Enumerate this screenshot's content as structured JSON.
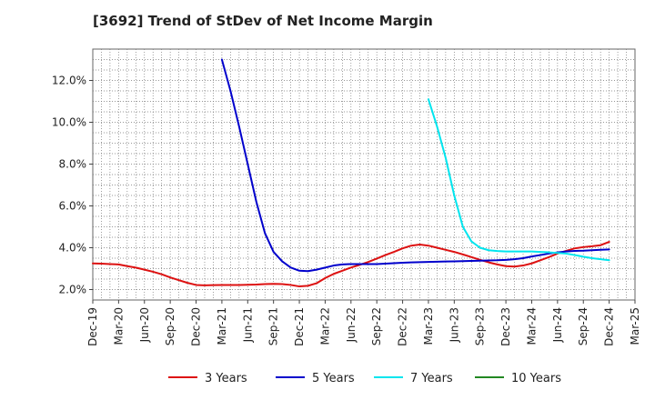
{
  "chart_data": {
    "type": "line",
    "title": "[3692]  Trend of StDev of Net Income Margin",
    "xlabel": "",
    "ylabel": "",
    "ylim": [
      1.5,
      13.5
    ],
    "y_ticks": [
      2.0,
      4.0,
      6.0,
      8.0,
      10.0,
      12.0
    ],
    "y_tick_labels": [
      "2.0%",
      "4.0%",
      "6.0%",
      "8.0%",
      "10.0%",
      "12.0%"
    ],
    "x_tick_labels": [
      "Dec-19",
      "Mar-20",
      "Jun-20",
      "Sep-20",
      "Dec-20",
      "Mar-21",
      "Jun-21",
      "Sep-21",
      "Dec-21",
      "Mar-22",
      "Jun-22",
      "Sep-22",
      "Dec-22",
      "Mar-23",
      "Jun-23",
      "Sep-23",
      "Dec-23",
      "Mar-24",
      "Jun-24",
      "Sep-24",
      "Dec-24",
      "Mar-25"
    ],
    "grid": true,
    "legend_position": "bottom",
    "series": [
      {
        "name": "3 Years",
        "color": "#dd1111",
        "points": [
          [
            "Dec-19",
            3.25
          ],
          [
            "Jan-20",
            3.24
          ],
          [
            "Feb-20",
            3.22
          ],
          [
            "Mar-20",
            3.2
          ],
          [
            "Apr-20",
            3.12
          ],
          [
            "May-20",
            3.05
          ],
          [
            "Jun-20",
            2.95
          ],
          [
            "Jul-20",
            2.85
          ],
          [
            "Aug-20",
            2.73
          ],
          [
            "Sep-20",
            2.58
          ],
          [
            "Oct-20",
            2.45
          ],
          [
            "Nov-20",
            2.32
          ],
          [
            "Dec-20",
            2.22
          ],
          [
            "Jan-21",
            2.2
          ],
          [
            "Feb-21",
            2.21
          ],
          [
            "Mar-21",
            2.22
          ],
          [
            "Apr-21",
            2.22
          ],
          [
            "May-21",
            2.22
          ],
          [
            "Jun-21",
            2.23
          ],
          [
            "Jul-21",
            2.24
          ],
          [
            "Aug-21",
            2.26
          ],
          [
            "Sep-21",
            2.27
          ],
          [
            "Oct-21",
            2.26
          ],
          [
            "Nov-21",
            2.22
          ],
          [
            "Dec-21",
            2.15
          ],
          [
            "Jan-22",
            2.18
          ],
          [
            "Feb-22",
            2.3
          ],
          [
            "Mar-22",
            2.55
          ],
          [
            "Apr-22",
            2.75
          ],
          [
            "May-22",
            2.9
          ],
          [
            "Jun-22",
            3.05
          ],
          [
            "Jul-22",
            3.18
          ],
          [
            "Aug-22",
            3.32
          ],
          [
            "Sep-22",
            3.48
          ],
          [
            "Oct-22",
            3.65
          ],
          [
            "Nov-22",
            3.8
          ],
          [
            "Dec-22",
            3.97
          ],
          [
            "Jan-23",
            4.1
          ],
          [
            "Feb-23",
            4.15
          ],
          [
            "Mar-23",
            4.1
          ],
          [
            "Apr-23",
            4.0
          ],
          [
            "May-23",
            3.9
          ],
          [
            "Jun-23",
            3.8
          ],
          [
            "Jul-23",
            3.68
          ],
          [
            "Aug-23",
            3.55
          ],
          [
            "Sep-23",
            3.42
          ],
          [
            "Oct-23",
            3.3
          ],
          [
            "Nov-23",
            3.2
          ],
          [
            "Dec-23",
            3.12
          ],
          [
            "Jan-24",
            3.1
          ],
          [
            "Feb-24",
            3.15
          ],
          [
            "Mar-24",
            3.25
          ],
          [
            "Apr-24",
            3.4
          ],
          [
            "May-24",
            3.55
          ],
          [
            "Jun-24",
            3.72
          ],
          [
            "Jul-24",
            3.85
          ],
          [
            "Aug-24",
            3.97
          ],
          [
            "Sep-24",
            4.03
          ],
          [
            "Oct-24",
            4.07
          ],
          [
            "Nov-24",
            4.12
          ],
          [
            "Dec-24",
            4.28
          ]
        ]
      },
      {
        "name": "5 Years",
        "color": "#0000cc",
        "points": [
          [
            "Mar-21",
            13.0
          ],
          [
            "Apr-21",
            11.5
          ],
          [
            "May-21",
            9.8
          ],
          [
            "Jun-21",
            8.0
          ],
          [
            "Jul-21",
            6.2
          ],
          [
            "Aug-21",
            4.7
          ],
          [
            "Sep-21",
            3.8
          ],
          [
            "Oct-21",
            3.35
          ],
          [
            "Nov-21",
            3.05
          ],
          [
            "Dec-21",
            2.9
          ],
          [
            "Jan-22",
            2.88
          ],
          [
            "Feb-22",
            2.95
          ],
          [
            "Mar-22",
            3.05
          ],
          [
            "Apr-22",
            3.15
          ],
          [
            "May-22",
            3.2
          ],
          [
            "Jun-22",
            3.22
          ],
          [
            "Jul-22",
            3.22
          ],
          [
            "Aug-22",
            3.22
          ],
          [
            "Sep-22",
            3.22
          ],
          [
            "Oct-22",
            3.24
          ],
          [
            "Nov-22",
            3.26
          ],
          [
            "Dec-22",
            3.28
          ],
          [
            "Jan-23",
            3.3
          ],
          [
            "Feb-23",
            3.31
          ],
          [
            "Mar-23",
            3.32
          ],
          [
            "Apr-23",
            3.33
          ],
          [
            "May-23",
            3.34
          ],
          [
            "Jun-23",
            3.35
          ],
          [
            "Jul-23",
            3.36
          ],
          [
            "Aug-23",
            3.37
          ],
          [
            "Sep-23",
            3.38
          ],
          [
            "Oct-23",
            3.39
          ],
          [
            "Nov-23",
            3.4
          ],
          [
            "Dec-23",
            3.42
          ],
          [
            "Jan-24",
            3.45
          ],
          [
            "Feb-24",
            3.5
          ],
          [
            "Mar-24",
            3.58
          ],
          [
            "Apr-24",
            3.65
          ],
          [
            "May-24",
            3.72
          ],
          [
            "Jun-24",
            3.78
          ],
          [
            "Jul-24",
            3.82
          ],
          [
            "Aug-24",
            3.85
          ],
          [
            "Sep-24",
            3.86
          ],
          [
            "Oct-24",
            3.88
          ],
          [
            "Nov-24",
            3.9
          ],
          [
            "Dec-24",
            3.92
          ]
        ]
      },
      {
        "name": "7 Years",
        "color": "#00e5ee",
        "points": [
          [
            "Mar-23",
            11.1
          ],
          [
            "Apr-23",
            9.8
          ],
          [
            "May-23",
            8.3
          ],
          [
            "Jun-23",
            6.5
          ],
          [
            "Jul-23",
            5.0
          ],
          [
            "Aug-23",
            4.3
          ],
          [
            "Sep-23",
            4.0
          ],
          [
            "Oct-23",
            3.88
          ],
          [
            "Nov-23",
            3.84
          ],
          [
            "Dec-23",
            3.82
          ],
          [
            "Jan-24",
            3.82
          ],
          [
            "Feb-24",
            3.82
          ],
          [
            "Mar-24",
            3.82
          ],
          [
            "Apr-24",
            3.8
          ],
          [
            "May-24",
            3.78
          ],
          [
            "Jun-24",
            3.75
          ],
          [
            "Jul-24",
            3.72
          ],
          [
            "Aug-24",
            3.65
          ],
          [
            "Sep-24",
            3.57
          ],
          [
            "Oct-24",
            3.5
          ],
          [
            "Nov-24",
            3.45
          ],
          [
            "Dec-24",
            3.4
          ]
        ]
      },
      {
        "name": "10 Years",
        "color": "#228822",
        "points": []
      }
    ]
  }
}
